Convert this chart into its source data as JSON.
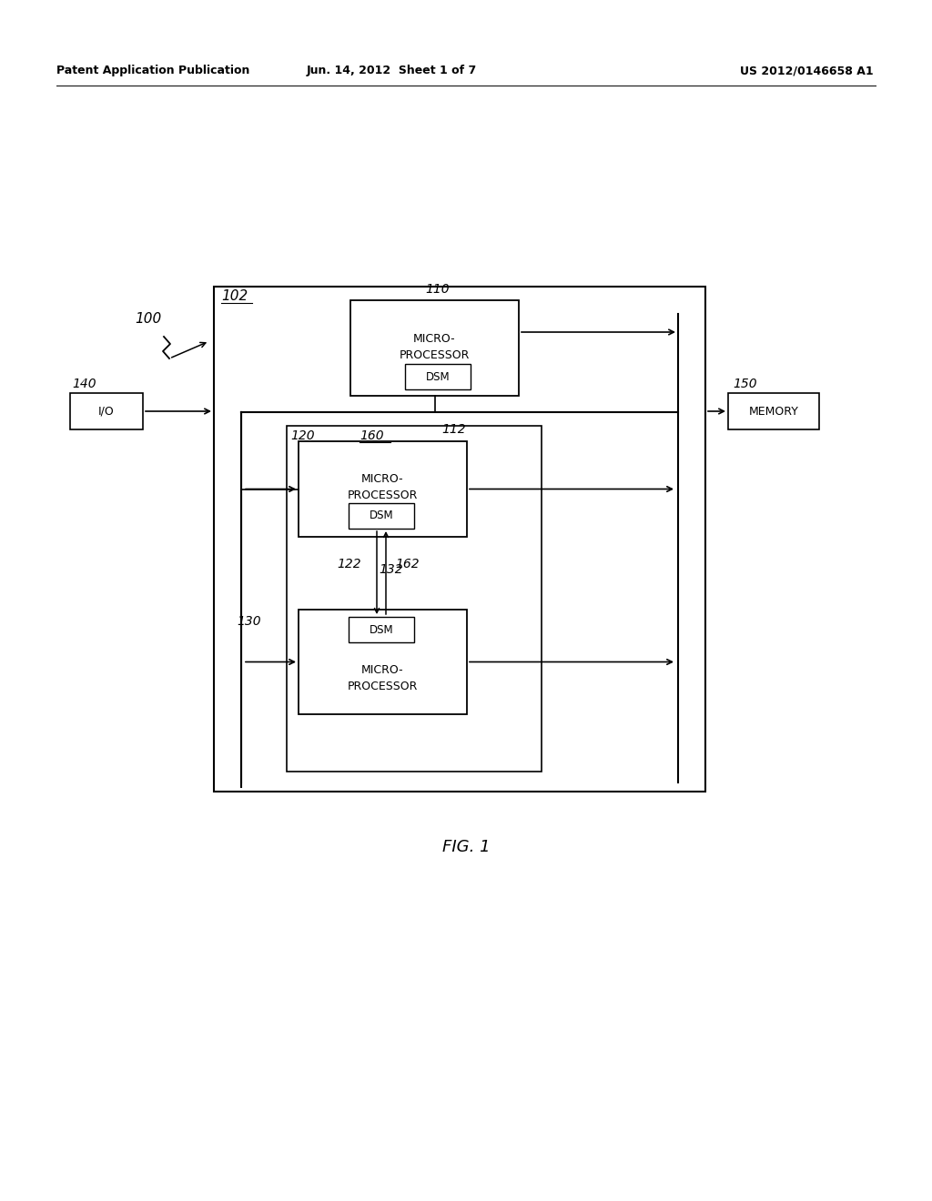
{
  "bg_color": "#ffffff",
  "header_left": "Patent Application Publication",
  "header_center": "Jun. 14, 2012  Sheet 1 of 7",
  "header_right": "US 2012/0146658 A1",
  "label_100": "100",
  "label_102": "102",
  "label_110": "110",
  "label_112": "112",
  "label_120": "120",
  "label_122": "122",
  "label_130": "130",
  "label_132": "132",
  "label_140": "140",
  "label_150": "150",
  "label_160": "160",
  "label_162": "162",
  "figure_label": "FIG. 1"
}
